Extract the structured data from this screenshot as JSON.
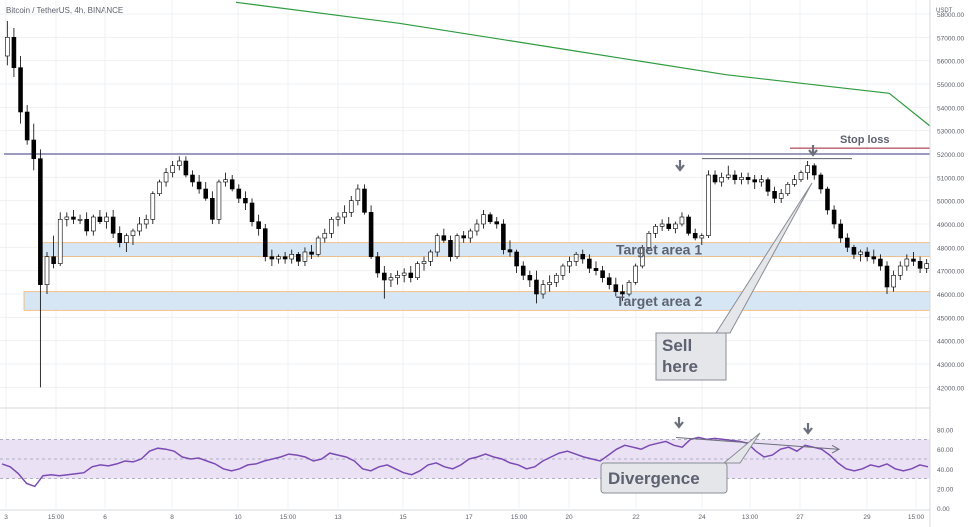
{
  "header": {
    "symbol_title": "Bitcoin / TetherUS, 4h, BINANCE",
    "currency": "USDT"
  },
  "colors": {
    "up": "#ffffff",
    "down": "#000000",
    "wick": "#000000",
    "ma": "#2e9b3f",
    "resistance": "#9b9bc0",
    "stop_loss": "#9c1f2e",
    "zone_fill": "#d6e6f5",
    "zone_border": "#f2b36b",
    "rsi_line": "#7b4bb3",
    "rsi_band": "#ebe1f5",
    "annotation_text": "#5d6170",
    "callout_fill": "#e4e6ea",
    "callout_border": "#8a8d95",
    "arrow": "#6b6f7a"
  },
  "annotations": {
    "target_area_1": "Target area 1",
    "target_area_2": "Target area 2",
    "stop_loss": "Stop loss",
    "sell_here": "Sell\nhere",
    "divergence": "Divergence"
  },
  "chart_data": [
    {
      "type": "candlestick",
      "title": "Bitcoin / TetherUS, 4h, BINANCE",
      "ylabel": "USDT",
      "ylim": [
        41200,
        58600
      ],
      "y_ticks": [
        "58000.00",
        "57000.00",
        "56000.00",
        "55000.00",
        "54000.00",
        "53000.00",
        "52000.00",
        "51000.00",
        "50000.00",
        "49000.00",
        "48000.00",
        "47000.00",
        "46000.00",
        "45000.00",
        "44000.00",
        "43000.00",
        "42000.00"
      ],
      "x_ticks": [
        "3",
        "15:00",
        "6",
        "8",
        "10",
        "15:00",
        "13",
        "15",
        "17",
        "15:00",
        "20",
        "22",
        "24",
        "13:00",
        "27",
        "29",
        "15:00"
      ],
      "moving_average": {
        "x": [
          0,
          40,
          80,
          120,
          160,
          170
        ],
        "y": [
          58500,
          57600,
          56500,
          55400,
          54600,
          53200
        ]
      },
      "resistance_level": 52000,
      "stop_loss_level": 52250,
      "target_area_1": [
        47600,
        48200
      ],
      "target_area_2": [
        45300,
        46100
      ],
      "candles": [
        [
          56200,
          57700,
          55800,
          57000
        ],
        [
          57000,
          57400,
          55300,
          55700
        ],
        [
          55700,
          56200,
          53300,
          53800
        ],
        [
          53800,
          54100,
          52400,
          52600
        ],
        [
          52600,
          53300,
          51300,
          51800
        ],
        [
          51800,
          52200,
          42000,
          46400
        ],
        [
          46400,
          47800,
          46000,
          47600
        ],
        [
          47600,
          48500,
          47100,
          47300
        ],
        [
          47300,
          49500,
          47200,
          49200
        ],
        [
          49200,
          49500,
          48900,
          49300
        ],
        [
          49300,
          49600,
          49000,
          49200
        ],
        [
          49200,
          49400,
          49000,
          49200
        ],
        [
          49200,
          49500,
          48500,
          48700
        ],
        [
          48700,
          49400,
          48500,
          49300
        ],
        [
          49300,
          49600,
          49000,
          49100
        ],
        [
          49100,
          49500,
          48800,
          49300
        ],
        [
          49300,
          49600,
          48400,
          48600
        ],
        [
          48600,
          48900,
          48000,
          48200
        ],
        [
          48200,
          48600,
          47800,
          48500
        ],
        [
          48500,
          48800,
          48100,
          48700
        ],
        [
          48700,
          49300,
          48500,
          49000
        ],
        [
          49000,
          49400,
          48800,
          49200
        ],
        [
          49200,
          50400,
          49000,
          50300
        ],
        [
          50300,
          50900,
          50200,
          50800
        ],
        [
          50800,
          51400,
          50600,
          51200
        ],
        [
          51200,
          51700,
          51000,
          51500
        ],
        [
          51500,
          51900,
          51300,
          51700
        ],
        [
          51700,
          51900,
          51000,
          51100
        ],
        [
          51100,
          51300,
          50600,
          50800
        ],
        [
          50800,
          51100,
          50300,
          50500
        ],
        [
          50500,
          50800,
          50000,
          50100
        ],
        [
          50100,
          50400,
          49000,
          49200
        ],
        [
          49200,
          50900,
          49000,
          50800
        ],
        [
          50800,
          51200,
          50600,
          50900
        ],
        [
          50900,
          51100,
          50400,
          50500
        ],
        [
          50500,
          50700,
          49900,
          50100
        ],
        [
          50100,
          50400,
          49600,
          49900
        ],
        [
          49900,
          50100,
          48900,
          49100
        ],
        [
          49100,
          49400,
          48500,
          48800
        ],
        [
          48800,
          49000,
          47400,
          47600
        ],
        [
          47600,
          47900,
          47200,
          47500
        ],
        [
          47500,
          47700,
          47300,
          47600
        ],
        [
          47600,
          47800,
          47300,
          47500
        ],
        [
          47500,
          47900,
          47300,
          47700
        ],
        [
          47700,
          47800,
          47200,
          47400
        ],
        [
          47400,
          48000,
          47200,
          47800
        ],
        [
          47800,
          48100,
          47500,
          47700
        ],
        [
          47700,
          48500,
          47600,
          48400
        ],
        [
          48400,
          48800,
          48200,
          48600
        ],
        [
          48600,
          49300,
          48400,
          49200
        ],
        [
          49200,
          49500,
          48900,
          49300
        ],
        [
          49300,
          49800,
          49000,
          49500
        ],
        [
          49500,
          50200,
          49300,
          50000
        ],
        [
          50000,
          50700,
          49800,
          50500
        ],
        [
          50500,
          50700,
          49400,
          49500
        ],
        [
          49500,
          49800,
          47500,
          47600
        ],
        [
          47600,
          47800,
          46700,
          46900
        ],
        [
          46900,
          47200,
          45800,
          46600
        ],
        [
          46600,
          46900,
          46300,
          46700
        ],
        [
          46700,
          47000,
          46400,
          46800
        ],
        [
          46800,
          47100,
          46500,
          46900
        ],
        [
          46900,
          47200,
          46500,
          46700
        ],
        [
          46700,
          47400,
          46600,
          47300
        ],
        [
          47300,
          47600,
          47000,
          47400
        ],
        [
          47400,
          47900,
          47200,
          47800
        ],
        [
          47800,
          48600,
          47600,
          48500
        ],
        [
          48500,
          48800,
          48200,
          48300
        ],
        [
          48300,
          48500,
          47400,
          47600
        ],
        [
          47600,
          48600,
          47500,
          48500
        ],
        [
          48500,
          48700,
          48200,
          48400
        ],
        [
          48400,
          48800,
          48200,
          48700
        ],
        [
          48700,
          49200,
          48500,
          49000
        ],
        [
          49000,
          49600,
          48800,
          49400
        ],
        [
          49400,
          49500,
          49000,
          49100
        ],
        [
          49100,
          49300,
          48800,
          49000
        ],
        [
          49000,
          49200,
          47700,
          47900
        ],
        [
          47900,
          48300,
          47600,
          47800
        ],
        [
          47800,
          47900,
          46900,
          47200
        ],
        [
          47200,
          47400,
          46600,
          46800
        ],
        [
          46800,
          47000,
          46300,
          46600
        ],
        [
          46600,
          47000,
          45600,
          46000
        ],
        [
          46000,
          46600,
          45800,
          46400
        ],
        [
          46400,
          46800,
          46100,
          46500
        ],
        [
          46500,
          46900,
          46300,
          46800
        ],
        [
          46800,
          47300,
          46600,
          47200
        ],
        [
          47200,
          47600,
          46900,
          47400
        ],
        [
          47400,
          47800,
          47200,
          47700
        ],
        [
          47700,
          47900,
          47300,
          47500
        ],
        [
          47500,
          47700,
          46900,
          47100
        ],
        [
          47100,
          47400,
          46800,
          47000
        ],
        [
          47000,
          47200,
          46500,
          46700
        ],
        [
          46700,
          46900,
          46200,
          46400
        ],
        [
          46400,
          46700,
          45900,
          46100
        ],
        [
          46100,
          46400,
          45700,
          46000
        ],
        [
          46000,
          46600,
          45900,
          46500
        ],
        [
          46500,
          47300,
          46400,
          47200
        ],
        [
          47200,
          48100,
          47100,
          48000
        ],
        [
          48000,
          48700,
          47900,
          48600
        ],
        [
          48600,
          49000,
          48400,
          48900
        ],
        [
          48900,
          49200,
          48700,
          49000
        ],
        [
          49000,
          49300,
          48700,
          48800
        ],
        [
          48800,
          49100,
          48600,
          49000
        ],
        [
          49000,
          49500,
          48900,
          49300
        ],
        [
          49300,
          49400,
          48500,
          48600
        ],
        [
          48600,
          48800,
          48300,
          48400
        ],
        [
          48400,
          48600,
          48100,
          48500
        ],
        [
          48500,
          51300,
          48400,
          51100
        ],
        [
          51100,
          51300,
          50700,
          50800
        ],
        [
          50800,
          51200,
          50600,
          51000
        ],
        [
          51000,
          51500,
          50900,
          51100
        ],
        [
          51100,
          51300,
          50700,
          50900
        ],
        [
          50900,
          51200,
          50700,
          51000
        ],
        [
          51000,
          51200,
          50700,
          50900
        ],
        [
          50900,
          51100,
          50500,
          50800
        ],
        [
          50800,
          51100,
          50600,
          50900
        ],
        [
          50900,
          51000,
          50200,
          50400
        ],
        [
          50400,
          50600,
          49900,
          50100
        ],
        [
          50100,
          50500,
          49900,
          50300
        ],
        [
          50300,
          50800,
          50200,
          50700
        ],
        [
          50700,
          51100,
          50600,
          50900
        ],
        [
          50900,
          51300,
          50800,
          51200
        ],
        [
          51200,
          51700,
          50900,
          51500
        ],
        [
          51500,
          51600,
          50900,
          51100
        ],
        [
          51100,
          51200,
          50300,
          50500
        ],
        [
          50500,
          50600,
          49400,
          49600
        ],
        [
          49600,
          49800,
          48800,
          49000
        ],
        [
          49000,
          49200,
          48200,
          48400
        ],
        [
          48400,
          48600,
          47800,
          48000
        ],
        [
          48000,
          48100,
          47500,
          47700
        ],
        [
          47700,
          47900,
          47400,
          47800
        ],
        [
          47800,
          48000,
          47400,
          47600
        ],
        [
          47600,
          47900,
          47300,
          47500
        ],
        [
          47500,
          47700,
          47000,
          47200
        ],
        [
          47200,
          47400,
          46000,
          46300
        ],
        [
          46300,
          47000,
          46100,
          46800
        ],
        [
          46800,
          47400,
          46600,
          47200
        ],
        [
          47200,
          47700,
          47000,
          47500
        ],
        [
          47500,
          47800,
          47200,
          47400
        ],
        [
          47400,
          47600,
          46900,
          47100
        ],
        [
          47100,
          47500,
          46900,
          47300
        ]
      ]
    },
    {
      "type": "line",
      "title": "RSI",
      "ylim": [
        0,
        100
      ],
      "y_ticks": [
        "80.00",
        "60.00",
        "40.00",
        "20.00",
        "0.00"
      ],
      "band": [
        30,
        70
      ],
      "midline": 50,
      "values": [
        45,
        42,
        35,
        25,
        22,
        33,
        34,
        33,
        34,
        35,
        36,
        42,
        44,
        43,
        45,
        48,
        47,
        50,
        58,
        61,
        60,
        58,
        52,
        50,
        51,
        48,
        45,
        40,
        38,
        40,
        44,
        45,
        48,
        50,
        52,
        55,
        54,
        52,
        48,
        50,
        56,
        54,
        52,
        48,
        40,
        38,
        42,
        44,
        40,
        36,
        34,
        38,
        44,
        46,
        42,
        40,
        44,
        50,
        52,
        55,
        52,
        50,
        46,
        44,
        40,
        42,
        48,
        52,
        56,
        58,
        55,
        52,
        50,
        48,
        54,
        60,
        64,
        62,
        60,
        64,
        66,
        68,
        64,
        62,
        70,
        72,
        70,
        71,
        70,
        69,
        68,
        66,
        58,
        52,
        54,
        60,
        62,
        58,
        64,
        62,
        60,
        54,
        46,
        40,
        38,
        40,
        44,
        42,
        45,
        40,
        38,
        40,
        44,
        42
      ]
    }
  ]
}
